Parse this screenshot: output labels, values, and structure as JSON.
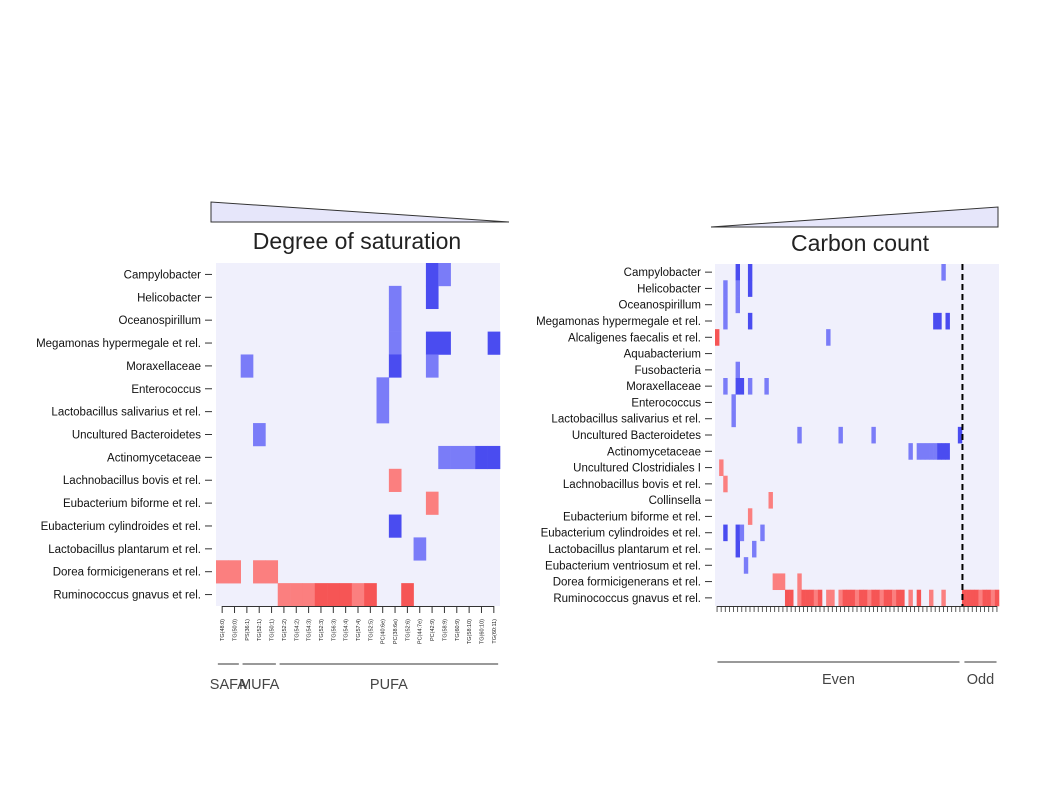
{
  "colors": {
    "background_cell": "#f0f0fc",
    "blue_light": "#7a7cf8",
    "blue_dark": "#4a4cf0",
    "red_light": "#fb7f7f",
    "red_dark": "#f65555",
    "wedge_fill": "#e6e6fa"
  },
  "chart_data": [
    {
      "type": "heatmap",
      "title": "Degree of saturation",
      "rows": [
        "Campylobacter",
        "Helicobacter",
        "Oceanospirillum",
        "Megamonas hypermegale et rel.",
        "Moraxellaceae",
        "Enterococcus",
        "Lactobacillus salivarius et rel.",
        "Uncultured Bacteroidetes",
        "Actinomycetaceae",
        "Lachnobacillus bovis et rel.",
        "Eubacterium biforme et rel.",
        "Eubacterium cylindroides et rel.",
        "Lactobacillus plantarum et rel.",
        "Dorea formicigenerans et rel.",
        "Ruminococcus gnavus et rel."
      ],
      "columns": [
        "TG(48:0)",
        "TG(50:0)",
        "PS(36:1)",
        "TG(52:1)",
        "TG(50:1)",
        "TG(52:2)",
        "TG(54:2)",
        "TG(54:3)",
        "TG(52:3)",
        "TG(56:3)",
        "TG(54:4)",
        "TG(57:4)",
        "TG(52:5)",
        "PC(40:6e)",
        "PC(38:6e)",
        "TG(52:6)",
        "PC(44:7e)",
        "PC(42:9)",
        "TG(58:9)",
        "TG(60:9)",
        "TG(58:10)",
        "TG(60:10)",
        "TG(60:11)"
      ],
      "groups": [
        {
          "label": "SAFA",
          "from": 0,
          "to": 1
        },
        {
          "label": "MUFA",
          "from": 2,
          "to": 4
        },
        {
          "label": "PUFA",
          "from": 5,
          "to": 22
        }
      ],
      "cells": [
        {
          "row": 0,
          "col": 17,
          "value": -1.0
        },
        {
          "row": 0,
          "col": 18,
          "value": -0.7
        },
        {
          "row": 1,
          "col": 14,
          "value": -0.7
        },
        {
          "row": 1,
          "col": 17,
          "value": -1.0
        },
        {
          "row": 2,
          "col": 14,
          "value": -0.7
        },
        {
          "row": 3,
          "col": 14,
          "value": -0.7
        },
        {
          "row": 3,
          "col": 17,
          "value": -1.0
        },
        {
          "row": 3,
          "col": 18,
          "value": -1.0
        },
        {
          "row": 3,
          "col": 22,
          "value": -1.0
        },
        {
          "row": 4,
          "col": 2,
          "value": -0.7
        },
        {
          "row": 4,
          "col": 14,
          "value": -1.0
        },
        {
          "row": 4,
          "col": 17,
          "value": -0.7
        },
        {
          "row": 5,
          "col": 13,
          "value": -0.7
        },
        {
          "row": 6,
          "col": 13,
          "value": -0.7
        },
        {
          "row": 7,
          "col": 3,
          "value": -0.7
        },
        {
          "row": 8,
          "col": 18,
          "value": -0.7
        },
        {
          "row": 8,
          "col": 19,
          "value": -0.7
        },
        {
          "row": 8,
          "col": 20,
          "value": -0.7
        },
        {
          "row": 8,
          "col": 21,
          "value": -1.0
        },
        {
          "row": 8,
          "col": 22,
          "value": -1.0
        },
        {
          "row": 9,
          "col": 14,
          "value": 0.7
        },
        {
          "row": 10,
          "col": 17,
          "value": 0.7
        },
        {
          "row": 11,
          "col": 14,
          "value": -1.0
        },
        {
          "row": 12,
          "col": 16,
          "value": -0.7
        },
        {
          "row": 13,
          "col": 0,
          "value": 0.7
        },
        {
          "row": 13,
          "col": 1,
          "value": 0.7
        },
        {
          "row": 13,
          "col": 3,
          "value": 0.7
        },
        {
          "row": 13,
          "col": 4,
          "value": 0.7
        },
        {
          "row": 14,
          "col": 5,
          "value": 0.7
        },
        {
          "row": 14,
          "col": 6,
          "value": 0.7
        },
        {
          "row": 14,
          "col": 7,
          "value": 0.7
        },
        {
          "row": 14,
          "col": 8,
          "value": 1.0
        },
        {
          "row": 14,
          "col": 9,
          "value": 1.0
        },
        {
          "row": 14,
          "col": 10,
          "value": 1.0
        },
        {
          "row": 14,
          "col": 11,
          "value": 0.7
        },
        {
          "row": 14,
          "col": 12,
          "value": 1.0
        },
        {
          "row": 14,
          "col": 15,
          "value": 1.0
        }
      ]
    },
    {
      "type": "heatmap",
      "title": "Carbon count",
      "rows": [
        "Campylobacter",
        "Helicobacter",
        "Oceanospirillum",
        "Megamonas hypermegale et rel.",
        "Alcaligenes faecalis et rel.",
        "Aquabacterium",
        "Fusobacteria",
        "Moraxellaceae",
        "Enterococcus",
        "Lactobacillus salivarius et rel.",
        "Uncultured Bacteroidetes",
        "Actinomycetaceae",
        "Uncultured Clostridiales I",
        "Lachnobacillus bovis et rel.",
        "Collinsella",
        "Eubacterium biforme et rel.",
        "Eubacterium cylindroides et rel.",
        "Lactobacillus plantarum et rel.",
        "Eubacterium ventriosum et rel.",
        "Dorea formicigenerans et rel.",
        "Ruminococcus gnavus et rel."
      ],
      "n_columns": 69,
      "even_columns": 60,
      "groups": [
        {
          "label": "Even",
          "from": 0,
          "to": 59
        },
        {
          "label": "Odd",
          "from": 60,
          "to": 68
        }
      ],
      "cells": [
        {
          "row": 0,
          "col": 5,
          "value": -1.0
        },
        {
          "row": 0,
          "col": 8,
          "value": -1.0
        },
        {
          "row": 0,
          "col": 55,
          "value": -0.7
        },
        {
          "row": 1,
          "col": 2,
          "value": -0.7
        },
        {
          "row": 1,
          "col": 5,
          "value": -0.7
        },
        {
          "row": 1,
          "col": 8,
          "value": -1.0
        },
        {
          "row": 2,
          "col": 2,
          "value": -0.7
        },
        {
          "row": 2,
          "col": 5,
          "value": -0.7
        },
        {
          "row": 3,
          "col": 2,
          "value": -0.7
        },
        {
          "row": 3,
          "col": 8,
          "value": -1.0
        },
        {
          "row": 3,
          "col": 53,
          "value": -1.0
        },
        {
          "row": 3,
          "col": 54,
          "value": -1.0
        },
        {
          "row": 3,
          "col": 56,
          "value": -1.0
        },
        {
          "row": 4,
          "col": 0,
          "value": 1.0
        },
        {
          "row": 4,
          "col": 27,
          "value": -0.7
        },
        {
          "row": 6,
          "col": 5,
          "value": -0.7
        },
        {
          "row": 7,
          "col": 2,
          "value": -0.7
        },
        {
          "row": 7,
          "col": 5,
          "value": -1.0
        },
        {
          "row": 7,
          "col": 6,
          "value": -1.0
        },
        {
          "row": 7,
          "col": 8,
          "value": -0.7
        },
        {
          "row": 7,
          "col": 12,
          "value": -0.7
        },
        {
          "row": 8,
          "col": 4,
          "value": -0.7
        },
        {
          "row": 9,
          "col": 4,
          "value": -0.7
        },
        {
          "row": 10,
          "col": 20,
          "value": -0.7
        },
        {
          "row": 10,
          "col": 30,
          "value": -0.7
        },
        {
          "row": 10,
          "col": 38,
          "value": -0.7
        },
        {
          "row": 10,
          "col": 59,
          "value": -1.0
        },
        {
          "row": 11,
          "col": 47,
          "value": -0.7
        },
        {
          "row": 11,
          "col": 49,
          "value": -0.7
        },
        {
          "row": 11,
          "col": 50,
          "value": -0.7
        },
        {
          "row": 11,
          "col": 51,
          "value": -0.7
        },
        {
          "row": 11,
          "col": 52,
          "value": -0.7
        },
        {
          "row": 11,
          "col": 53,
          "value": -0.7
        },
        {
          "row": 11,
          "col": 54,
          "value": -1.0
        },
        {
          "row": 11,
          "col": 55,
          "value": -1.0
        },
        {
          "row": 11,
          "col": 56,
          "value": -1.0
        },
        {
          "row": 12,
          "col": 1,
          "value": 0.7
        },
        {
          "row": 13,
          "col": 2,
          "value": 0.7
        },
        {
          "row": 14,
          "col": 13,
          "value": 0.7
        },
        {
          "row": 15,
          "col": 8,
          "value": 0.7
        },
        {
          "row": 16,
          "col": 2,
          "value": -1.0
        },
        {
          "row": 16,
          "col": 5,
          "value": -1.0
        },
        {
          "row": 16,
          "col": 6,
          "value": -0.7
        },
        {
          "row": 16,
          "col": 11,
          "value": -0.7
        },
        {
          "row": 17,
          "col": 5,
          "value": -1.0
        },
        {
          "row": 17,
          "col": 9,
          "value": -0.7
        },
        {
          "row": 18,
          "col": 7,
          "value": -0.7
        },
        {
          "row": 19,
          "col": 14,
          "value": 0.7
        },
        {
          "row": 19,
          "col": 15,
          "value": 0.7
        },
        {
          "row": 19,
          "col": 16,
          "value": 0.7
        },
        {
          "row": 19,
          "col": 20,
          "value": 0.7
        },
        {
          "row": 20,
          "col": 17,
          "value": 1.0
        },
        {
          "row": 20,
          "col": 18,
          "value": 1.0
        },
        {
          "row": 20,
          "col": 20,
          "value": 0.7
        },
        {
          "row": 20,
          "col": 21,
          "value": 1.0
        },
        {
          "row": 20,
          "col": 22,
          "value": 1.0
        },
        {
          "row": 20,
          "col": 23,
          "value": 1.0
        },
        {
          "row": 20,
          "col": 24,
          "value": 0.7
        },
        {
          "row": 20,
          "col": 25,
          "value": 1.0
        },
        {
          "row": 20,
          "col": 27,
          "value": 0.7
        },
        {
          "row": 20,
          "col": 28,
          "value": 0.7
        },
        {
          "row": 20,
          "col": 30,
          "value": 0.7
        },
        {
          "row": 20,
          "col": 31,
          "value": 1.0
        },
        {
          "row": 20,
          "col": 32,
          "value": 1.0
        },
        {
          "row": 20,
          "col": 33,
          "value": 1.0
        },
        {
          "row": 20,
          "col": 34,
          "value": 0.7
        },
        {
          "row": 20,
          "col": 35,
          "value": 1.0
        },
        {
          "row": 20,
          "col": 36,
          "value": 1.0
        },
        {
          "row": 20,
          "col": 37,
          "value": 0.7
        },
        {
          "row": 20,
          "col": 38,
          "value": 1.0
        },
        {
          "row": 20,
          "col": 39,
          "value": 1.0
        },
        {
          "row": 20,
          "col": 40,
          "value": 0.7
        },
        {
          "row": 20,
          "col": 41,
          "value": 1.0
        },
        {
          "row": 20,
          "col": 42,
          "value": 1.0
        },
        {
          "row": 20,
          "col": 43,
          "value": 0.7
        },
        {
          "row": 20,
          "col": 44,
          "value": 1.0
        },
        {
          "row": 20,
          "col": 45,
          "value": 1.0
        },
        {
          "row": 20,
          "col": 47,
          "value": 0.7
        },
        {
          "row": 20,
          "col": 49,
          "value": 1.0
        },
        {
          "row": 20,
          "col": 52,
          "value": 0.7
        },
        {
          "row": 20,
          "col": 55,
          "value": 0.7
        },
        {
          "row": 20,
          "col": 60,
          "value": 1.0
        },
        {
          "row": 20,
          "col": 61,
          "value": 1.0
        },
        {
          "row": 20,
          "col": 62,
          "value": 1.0
        },
        {
          "row": 20,
          "col": 63,
          "value": 1.0
        },
        {
          "row": 20,
          "col": 64,
          "value": 0.7
        },
        {
          "row": 20,
          "col": 65,
          "value": 1.0
        },
        {
          "row": 20,
          "col": 66,
          "value": 1.0
        },
        {
          "row": 20,
          "col": 67,
          "value": 0.7
        },
        {
          "row": 20,
          "col": 68,
          "value": 1.0
        }
      ]
    }
  ]
}
